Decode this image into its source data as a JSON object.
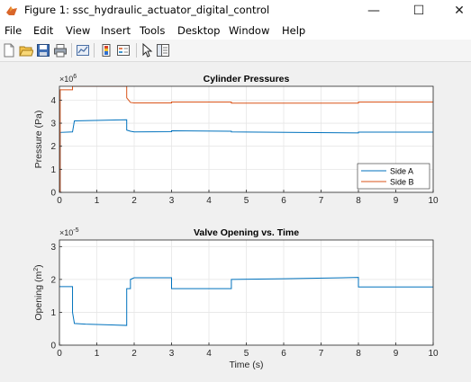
{
  "window": {
    "title": "Figure 1: ssc_hydraulic_actuator_digital_control",
    "minimize_glyph": "—",
    "maximize_glyph": "☐",
    "close_glyph": "✕",
    "app_icon": "matlab-figure-icon"
  },
  "menu": {
    "items": [
      "File",
      "Edit",
      "View",
      "Insert",
      "Tools",
      "Desktop",
      "Window",
      "Help"
    ]
  },
  "toolbar": {
    "icons": [
      "new-figure-icon",
      "open-file-icon",
      "save-icon",
      "print-icon",
      "link-plot-icon",
      "insert-colorbar-icon",
      "insert-legend-icon",
      "edit-plot-icon",
      "property-inspector-icon"
    ]
  },
  "colors": {
    "side_a": "#0072BD",
    "side_b": "#D95319",
    "valve": "#0072BD"
  },
  "chart_data": [
    {
      "type": "line",
      "title": "Cylinder Pressures",
      "ylabel": "Pressure (Pa)",
      "xlabel": "",
      "exponent": "×10",
      "exponent_power": "6",
      "xlim": [
        0,
        10
      ],
      "ylim": [
        0,
        4.6
      ],
      "xticks": [
        0,
        1,
        2,
        3,
        4,
        5,
        6,
        7,
        8,
        9,
        10
      ],
      "yticks": [
        0,
        1,
        2,
        3,
        4
      ],
      "grid": true,
      "legend": "bottom-right",
      "series": [
        {
          "name": "Side A",
          "x": [
            0,
            0.02,
            0.02,
            0.35,
            0.4,
            1.8,
            1.8,
            1.9,
            2.0,
            3.0,
            3.0,
            4.6,
            4.6,
            8.0,
            8.0,
            10
          ],
          "y": [
            0,
            0,
            2.6,
            2.62,
            3.1,
            3.15,
            2.7,
            2.65,
            2.62,
            2.63,
            2.67,
            2.65,
            2.62,
            2.58,
            2.61,
            2.61
          ]
        },
        {
          "name": "Side B",
          "x": [
            0,
            0.02,
            0.02,
            0.35,
            0.35,
            1.8,
            1.8,
            1.9,
            2.0,
            3.0,
            3.0,
            4.6,
            4.6,
            8.0,
            8.0,
            10
          ],
          "y": [
            0,
            0,
            4.45,
            4.45,
            4.6,
            4.6,
            4.1,
            3.9,
            3.88,
            3.88,
            3.92,
            3.92,
            3.87,
            3.87,
            3.92,
            3.92
          ]
        }
      ]
    },
    {
      "type": "line",
      "title": "Valve Opening vs. Time",
      "ylabel": "Opening (m",
      "ylabel_power": "2",
      "ylabel_close": ")",
      "xlabel": "Time (s)",
      "exponent": "×10",
      "exponent_power": "-5",
      "xlim": [
        0,
        10
      ],
      "ylim": [
        0,
        3.2
      ],
      "xticks": [
        0,
        1,
        2,
        3,
        4,
        5,
        6,
        7,
        8,
        9,
        10
      ],
      "yticks": [
        0,
        1,
        2,
        3
      ],
      "grid": true,
      "series": [
        {
          "name": "",
          "x": [
            0,
            0.35,
            0.35,
            0.4,
            0.7,
            1.8,
            1.8,
            1.9,
            1.9,
            2.0,
            3.0,
            3.0,
            4.6,
            4.6,
            6.0,
            8.0,
            8.0,
            10
          ],
          "y": [
            1.78,
            1.78,
            1.0,
            0.66,
            0.64,
            0.6,
            1.72,
            1.72,
            2.0,
            2.05,
            2.05,
            1.72,
            1.72,
            2.0,
            2.02,
            2.06,
            1.77,
            1.77
          ]
        }
      ]
    }
  ]
}
